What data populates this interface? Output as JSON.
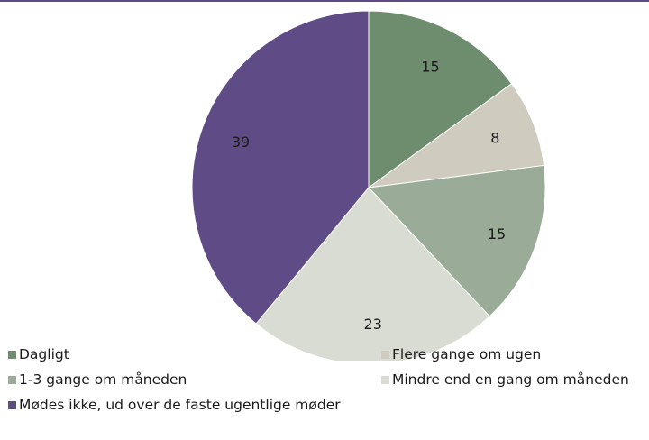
{
  "chart_data": {
    "type": "pie",
    "title": "",
    "legend_position": "bottom",
    "slices": [
      {
        "label": "Dagligt",
        "value": 15,
        "value_label": "15",
        "color": "#6e8c6e"
      },
      {
        "label": "Flere gange om ugen",
        "value": 8,
        "value_label": "8",
        "color": "#cfcbbf"
      },
      {
        "label": "1-3 gange om måneden",
        "value": 15,
        "value_label": "15",
        "color": "#9aac97"
      },
      {
        "label": "Mindre end en gang om måneden",
        "value": 23,
        "value_label": "23",
        "color": "#d9dcd3"
      },
      {
        "label": "Mødes ikke, ud over de faste ugentlige møder",
        "value": 39,
        "value_label": "39",
        "color": "#5f4b85"
      }
    ]
  }
}
